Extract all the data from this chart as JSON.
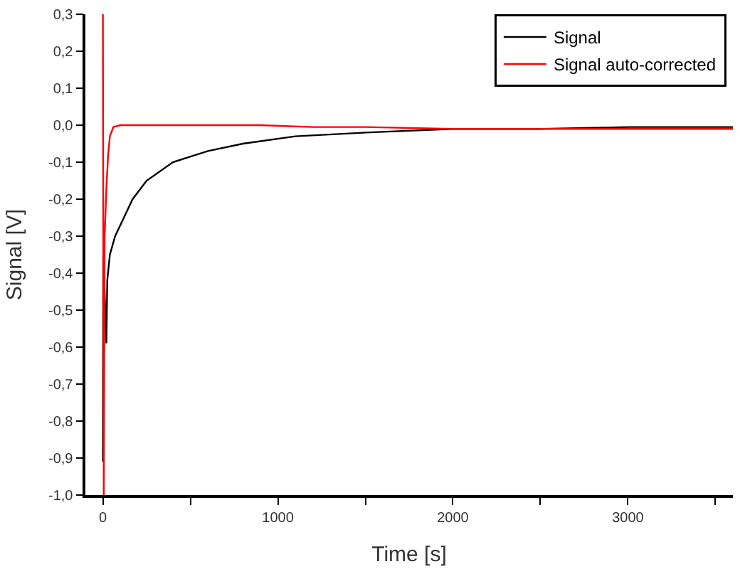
{
  "chart_data": {
    "type": "line",
    "xlabel": "Time [s]",
    "ylabel": "Signal [V]",
    "xlim": [
      -100,
      3600
    ],
    "xticks": [
      0,
      {
        "value": 500,
        "label": null
      },
      1000,
      {
        "value": 1500,
        "label": null
      },
      2000,
      {
        "value": 2500,
        "label": null
      },
      3000,
      {
        "value": 3500,
        "label": null
      }
    ],
    "ylim": [
      -1.0,
      0.3
    ],
    "yticks": [
      {
        "value": -1.0,
        "label": "-1,0"
      },
      {
        "value": -0.9,
        "label": "-0,9"
      },
      {
        "value": -0.8,
        "label": "-0,8"
      },
      {
        "value": -0.7,
        "label": "-0,7"
      },
      {
        "value": -0.6,
        "label": "-0,6"
      },
      {
        "value": -0.5,
        "label": "-0,5"
      },
      {
        "value": -0.4,
        "label": "-0,4"
      },
      {
        "value": -0.3,
        "label": "-0,3"
      },
      {
        "value": -0.2,
        "label": "-0,2"
      },
      {
        "value": -0.1,
        "label": "-0,1"
      },
      {
        "value": 0.0,
        "label": "0,0"
      },
      {
        "value": 0.1,
        "label": "0,1"
      },
      {
        "value": 0.2,
        "label": "0,2"
      },
      {
        "value": 0.3,
        "label": "0,3"
      }
    ],
    "legend": "top right",
    "marker": "none",
    "line_style": "solid",
    "series": [
      {
        "name": "Signal",
        "color": "#000000",
        "x": [
          0,
          2,
          10,
          20,
          25,
          40,
          70,
          120,
          170,
          250,
          400,
          600,
          800,
          1100,
          1500,
          2000,
          2500,
          3000,
          3600
        ],
        "values": [
          -0.91,
          -0.35,
          -0.45,
          -0.59,
          -0.42,
          -0.35,
          -0.3,
          -0.25,
          -0.2,
          -0.15,
          -0.1,
          -0.07,
          -0.05,
          -0.03,
          -0.02,
          -0.01,
          -0.01,
          -0.005,
          -0.005
        ]
      },
      {
        "name": "Signal auto-corrected",
        "color": "#ff0000",
        "x": [
          0,
          5,
          10,
          20,
          30,
          40,
          60,
          100,
          300,
          600,
          900,
          1200,
          1500,
          2000,
          2500,
          3000,
          3600
        ],
        "values": [
          0.3,
          -1.0,
          -0.3,
          -0.17,
          -0.08,
          -0.03,
          -0.005,
          0.0,
          0.0,
          0.0,
          0.0,
          -0.005,
          -0.005,
          -0.01,
          -0.01,
          -0.01,
          -0.01
        ]
      }
    ]
  }
}
